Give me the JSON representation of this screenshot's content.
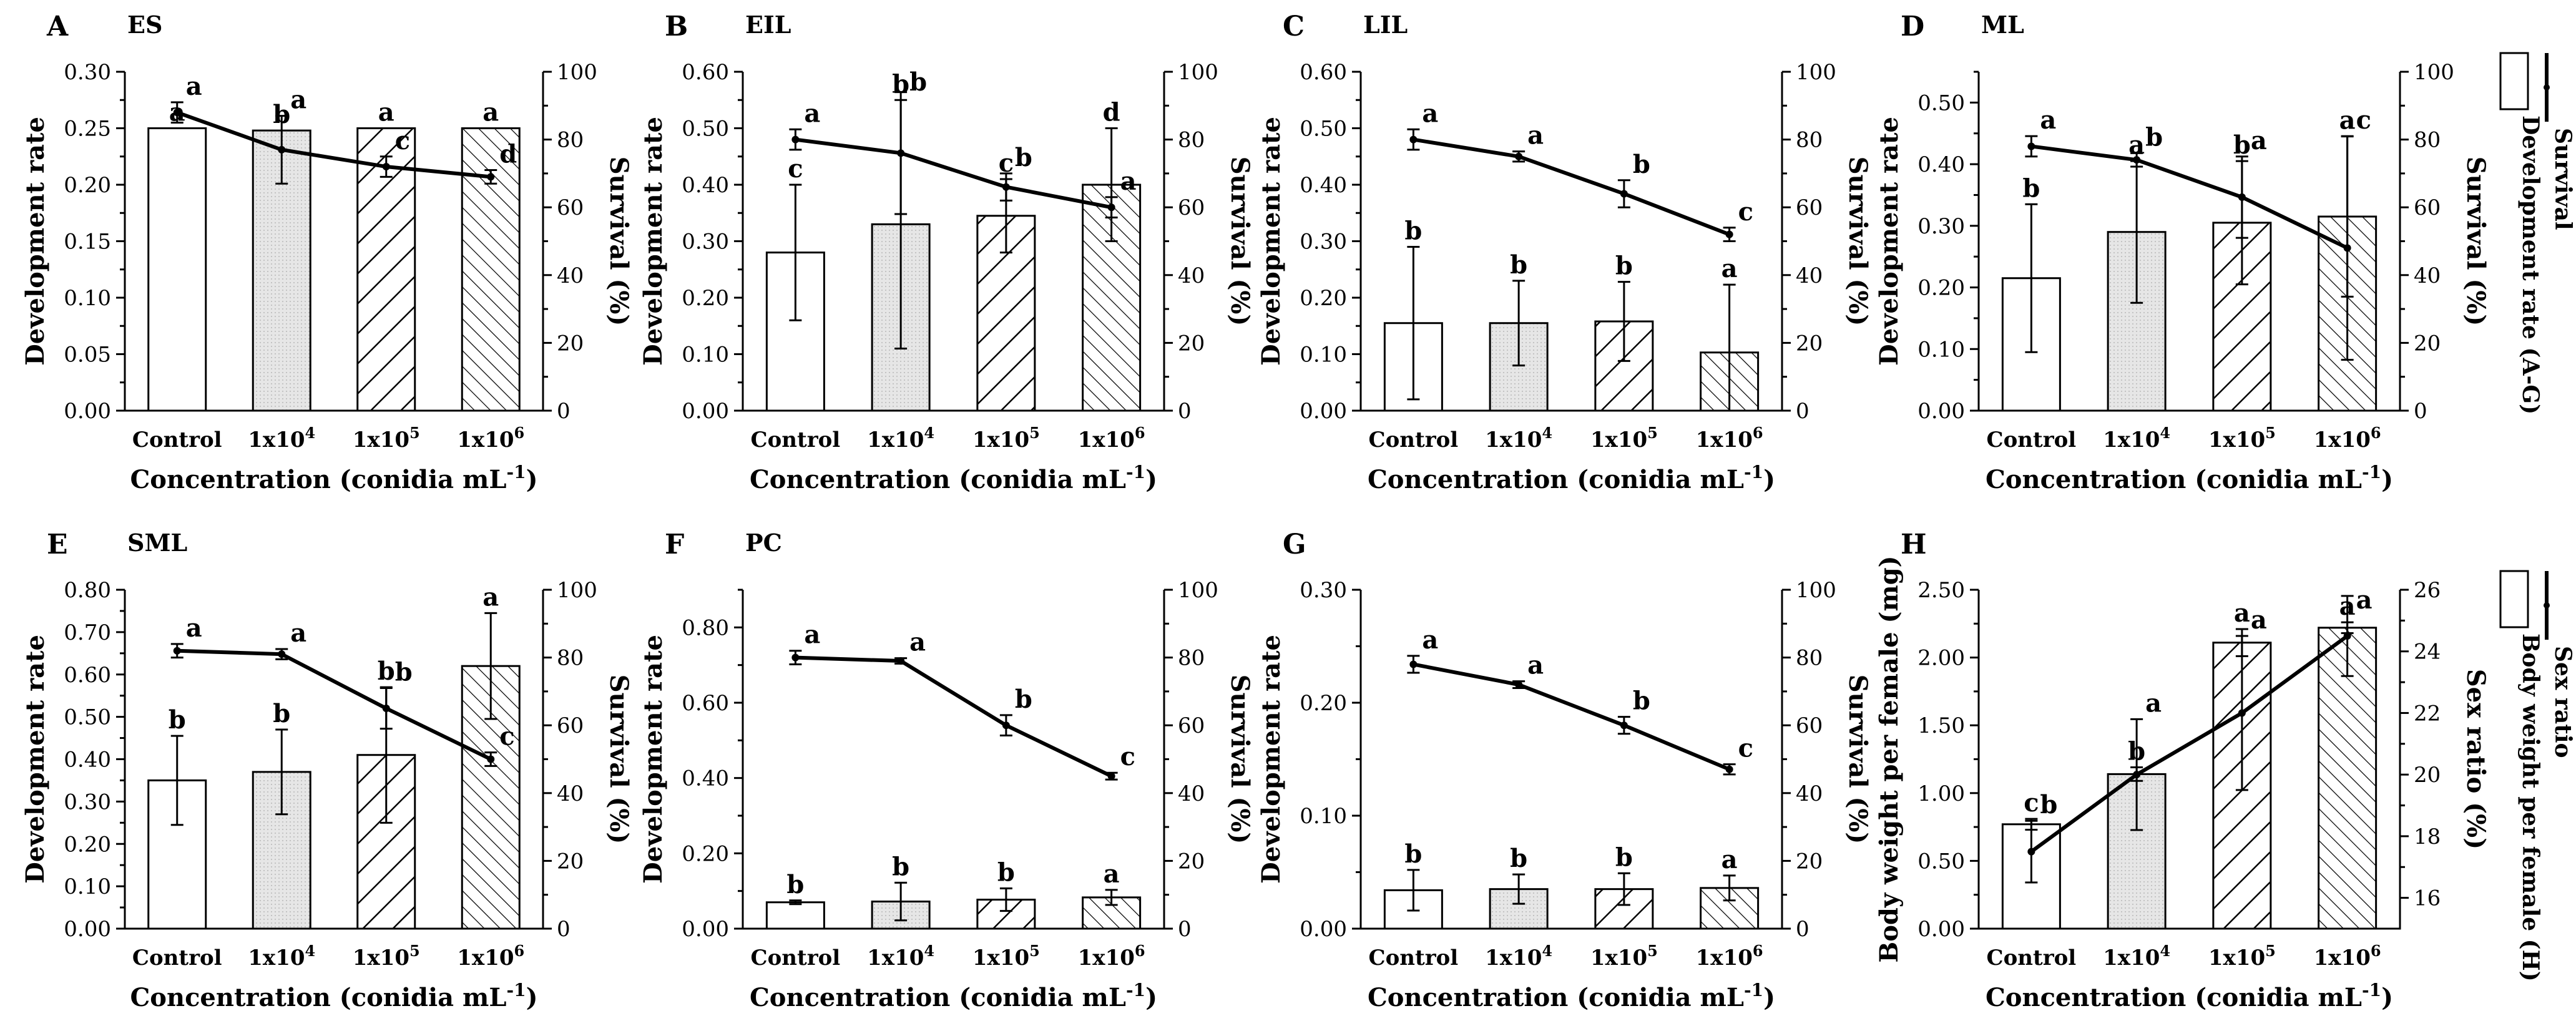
{
  "x_label_text": "Concentration (conidia mL",
  "x_label_sup": "-1",
  "x_label_close": ")",
  "chart_data": [
    {
      "type": "bar",
      "label": "A",
      "title": "ES",
      "ylabel": "Development rate",
      "y2label": "Survival (%)",
      "categories": [
        "Control",
        "1x10^4",
        "1x10^5",
        "1x10^6"
      ],
      "ylim": [
        0,
        0.3
      ],
      "yticks": [
        "0.00",
        "0.05",
        "0.10",
        "0.15",
        "0.20",
        "0.25",
        "0.30"
      ],
      "y2lim": [
        0,
        100
      ],
      "y2ticks": [
        "0",
        "20",
        "40",
        "60",
        "80",
        "100"
      ],
      "series": [
        {
          "name": "Development rate",
          "values": [
            0.25,
            0.248,
            0.25,
            0.25
          ],
          "errors": [
            0,
            0,
            0,
            0
          ],
          "labels": [
            "a",
            "b",
            "a",
            "a"
          ]
        },
        {
          "name": "Survival",
          "values": [
            88,
            77,
            72,
            69
          ],
          "errors": [
            3,
            10,
            3,
            2
          ],
          "labels": [
            "a",
            "a",
            "c",
            "d"
          ]
        }
      ]
    },
    {
      "type": "bar",
      "label": "B",
      "title": "EIL",
      "ylabel": "Development rate",
      "y2label": "Survival (%)",
      "categories": [
        "Control",
        "1x10^4",
        "1x10^5",
        "1x10^6"
      ],
      "ylim": [
        0,
        0.6
      ],
      "yticks": [
        "0.00",
        "0.10",
        "0.20",
        "0.30",
        "0.40",
        "0.50",
        "0.60"
      ],
      "y2lim": [
        0,
        100
      ],
      "y2ticks": [
        "0",
        "20",
        "40",
        "60",
        "80",
        "100"
      ],
      "series": [
        {
          "name": "Development rate",
          "values": [
            0.28,
            0.33,
            0.345,
            0.4
          ],
          "errors": [
            0.12,
            0.22,
            0.065,
            0.1
          ],
          "labels": [
            "c",
            "b",
            "c",
            "d"
          ]
        },
        {
          "name": "Survival",
          "values": [
            80,
            76,
            66,
            60
          ],
          "errors": [
            3,
            18,
            4,
            3
          ],
          "labels": [
            "a",
            "b",
            "b",
            "a"
          ]
        }
      ]
    },
    {
      "type": "bar",
      "label": "C",
      "title": "LIL",
      "ylabel": "Development rate",
      "y2label": "Survival (%)",
      "categories": [
        "Control",
        "1x10^4",
        "1x10^5",
        "1x10^6"
      ],
      "ylim": [
        0,
        0.6
      ],
      "yticks": [
        "0.00",
        "0.10",
        "0.20",
        "0.30",
        "0.40",
        "0.50",
        "0.60"
      ],
      "y2lim": [
        0,
        100
      ],
      "y2ticks": [
        "0",
        "20",
        "40",
        "60",
        "80",
        "100"
      ],
      "series": [
        {
          "name": "Development rate",
          "values": [
            0.155,
            0.155,
            0.158,
            0.103
          ],
          "errors": [
            0.135,
            0.075,
            0.07,
            0.12
          ],
          "labels": [
            "b",
            "b",
            "b",
            "a"
          ]
        },
        {
          "name": "Survival",
          "values": [
            80,
            75,
            64,
            52
          ],
          "errors": [
            3,
            1.5,
            4,
            2
          ],
          "labels": [
            "a",
            "a",
            "b",
            "c"
          ]
        }
      ]
    },
    {
      "type": "bar",
      "label": "D",
      "title": "ML",
      "ylabel": "Development rate",
      "y2label": "Survival (%)",
      "categories": [
        "Control",
        "1x10^4",
        "1x10^5",
        "1x10^6"
      ],
      "ylim": [
        0,
        0.55
      ],
      "yticks": [
        "0.00",
        "0.10",
        "0.20",
        "0.30",
        "0.40",
        "0.50"
      ],
      "y2lim": [
        0,
        100
      ],
      "y2ticks": [
        "0",
        "20",
        "40",
        "60",
        "80",
        "100"
      ],
      "series": [
        {
          "name": "Development rate",
          "values": [
            0.215,
            0.29,
            0.305,
            0.315
          ],
          "errors": [
            0.12,
            0.115,
            0.1,
            0.13
          ],
          "labels": [
            "b",
            "a",
            "b",
            "a"
          ]
        },
        {
          "name": "Survival",
          "values": [
            78,
            74,
            63,
            48
          ],
          "errors": [
            3,
            2,
            12,
            33
          ],
          "labels": [
            "a",
            "b",
            "a",
            "c"
          ]
        }
      ]
    },
    {
      "type": "bar",
      "label": "E",
      "title": "SML",
      "ylabel": "Development rate",
      "y2label": "Survival (%)",
      "categories": [
        "Control",
        "1x10^4",
        "1x10^5",
        "1x10^6"
      ],
      "ylim": [
        0,
        0.8
      ],
      "yticks": [
        "0.00",
        "0.10",
        "0.20",
        "0.30",
        "0.40",
        "0.50",
        "0.60",
        "0.70",
        "0.80"
      ],
      "y2lim": [
        0,
        100
      ],
      "y2ticks": [
        "0",
        "20",
        "40",
        "60",
        "80",
        "100"
      ],
      "series": [
        {
          "name": "Development rate",
          "values": [
            0.35,
            0.37,
            0.41,
            0.62
          ],
          "errors": [
            0.105,
            0.1,
            0.16,
            0.125
          ],
          "labels": [
            "b",
            "b",
            "b",
            "a"
          ]
        },
        {
          "name": "Survival",
          "values": [
            82,
            81,
            65,
            50
          ],
          "errors": [
            2,
            1.5,
            6,
            2
          ],
          "labels": [
            "a",
            "a",
            "b",
            "c"
          ]
        }
      ]
    },
    {
      "type": "bar",
      "label": "F",
      "title": "PC",
      "ylabel": "Development rate",
      "y2label": "Survival (%)",
      "categories": [
        "Control",
        "1x10^4",
        "1x10^5",
        "1x10^6"
      ],
      "ylim": [
        0,
        0.9
      ],
      "yticks": [
        "0.00",
        "0.20",
        "0.40",
        "0.60",
        "0.80"
      ],
      "y2lim": [
        0,
        100
      ],
      "y2ticks": [
        "0",
        "20",
        "40",
        "60",
        "80",
        "100"
      ],
      "series": [
        {
          "name": "Development rate",
          "values": [
            0.07,
            0.072,
            0.077,
            0.083
          ],
          "errors": [
            0.005,
            0.05,
            0.03,
            0.02
          ],
          "labels": [
            "b",
            "b",
            "b",
            "a"
          ]
        },
        {
          "name": "Survival",
          "values": [
            80,
            79,
            60,
            45
          ],
          "errors": [
            2,
            0.8,
            3,
            1
          ],
          "labels": [
            "a",
            "a",
            "b",
            "c"
          ]
        }
      ]
    },
    {
      "type": "bar",
      "label": "G",
      "title": "",
      "ylabel": "Development rate",
      "y2label": "Survival (%)",
      "categories": [
        "Control",
        "1x10^4",
        "1x10^5",
        "1x10^6"
      ],
      "ylim": [
        0,
        0.3
      ],
      "yticks": [
        "0.00",
        "0.10",
        "0.20",
        "0.30"
      ],
      "y2lim": [
        0,
        100
      ],
      "y2ticks": [
        "0",
        "20",
        "40",
        "60",
        "80",
        "100"
      ],
      "series": [
        {
          "name": "Development rate",
          "values": [
            0.034,
            0.035,
            0.035,
            0.036
          ],
          "errors": [
            0.018,
            0.013,
            0.014,
            0.011
          ],
          "labels": [
            "b",
            "b",
            "b",
            "a"
          ]
        },
        {
          "name": "Survival",
          "values": [
            78,
            72,
            60,
            47
          ],
          "errors": [
            2.5,
            1,
            2.5,
            1.5
          ],
          "labels": [
            "a",
            "a",
            "b",
            "c"
          ]
        }
      ]
    },
    {
      "type": "bar",
      "label": "H",
      "title": "",
      "ylabel": "Body weight per female (mg)",
      "y2label": "Sex ratio (%)",
      "categories": [
        "Control",
        "1x10^4",
        "1x10^5",
        "1x10^6"
      ],
      "ylim": [
        0,
        2.5
      ],
      "yticks": [
        "0.00",
        "0.50",
        "1.00",
        "1.50",
        "2.00",
        "2.50"
      ],
      "y2lim": [
        15,
        26
      ],
      "y2ticks": [
        "16",
        "18",
        "20",
        "22",
        "24",
        "26"
      ],
      "series": [
        {
          "name": "Body weight per female",
          "values": [
            0.77,
            1.14,
            2.11,
            2.22
          ],
          "errors": [
            0.04,
            0.05,
            0.1,
            0.04
          ],
          "labels": [
            "c",
            "b",
            "a",
            "a"
          ]
        },
        {
          "name": "Sex ratio",
          "values": [
            17.5,
            20.0,
            22.0,
            24.5
          ],
          "errors": [
            1.0,
            1.8,
            2.5,
            1.3
          ],
          "labels": [
            "b",
            "a",
            "a",
            "a"
          ]
        }
      ]
    }
  ],
  "legends": {
    "top": {
      "line_label": "Survival",
      "bar_label": "Development rate (A-G)"
    },
    "bottom": {
      "line_label": "Sex ratio",
      "bar_label": "Body weight per female (H)"
    }
  },
  "colors": {
    "bar_fill_1": "#ffffff",
    "bar_fill_2": "#e4e4e4",
    "ink": "#000000"
  }
}
